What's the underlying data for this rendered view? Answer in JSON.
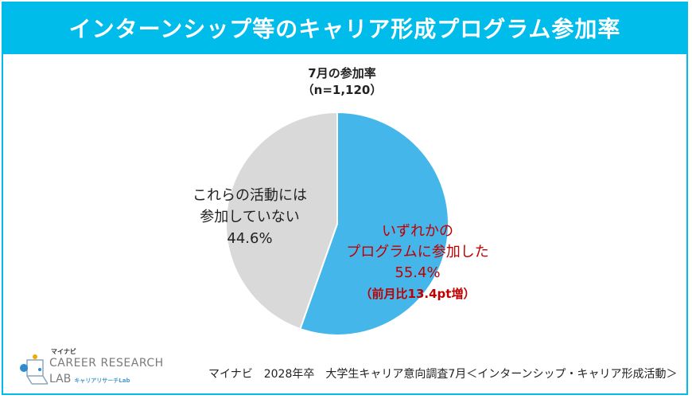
{
  "header": {
    "title": "インターンシップ等のキャリア形成プログラム参加率"
  },
  "chart_data": {
    "type": "pie",
    "title": "7月の参加率",
    "subtitle": "（n=1,120）",
    "slices": [
      {
        "label": "いずれかのプログラムに参加した",
        "value": 55.4,
        "display": "55.4%",
        "note": "（前月比13.4pt増）",
        "color": "#45B6EA"
      },
      {
        "label": "これらの活動には参加していない",
        "value": 44.6,
        "display": "44.6%",
        "color": "#D9D9D9"
      }
    ],
    "label_lines": {
      "blue": [
        "いずれかの",
        "プログラムに参加した"
      ],
      "gray": [
        "これらの活動には",
        "参加していない"
      ]
    }
  },
  "source": "マイナビ　2028年卒　大学生キャリア意向調査7月＜インターンシップ・キャリア形成活動＞",
  "logo": {
    "brand": "マイナビ",
    "line1": "CAREER RESEARCH",
    "line2": "LAB",
    "line2_small": "キャリアリサーチLab"
  }
}
